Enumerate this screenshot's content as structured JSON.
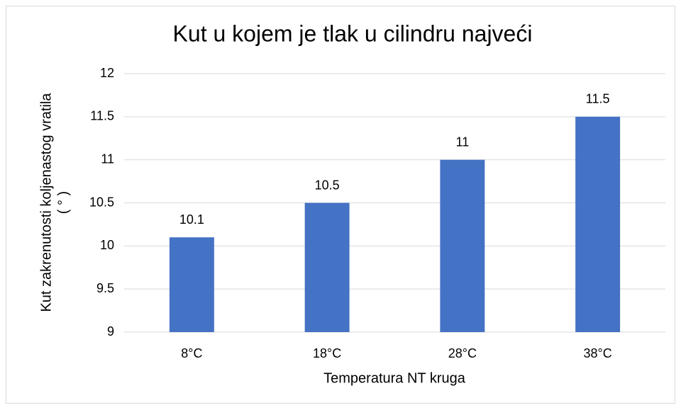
{
  "chart_data": {
    "type": "bar",
    "title": "Kut u kojem je tlak u cilindru najveći",
    "categories": [
      "8°C",
      "18°C",
      "28°C",
      "38°C"
    ],
    "values": [
      10.1,
      10.5,
      11,
      11.5
    ],
    "color": "#4472c4",
    "xlabel": "Temperatura NT kruga",
    "ylabel": [
      "Kut zakrenutosti    koljenastog vratila",
      "( ° )"
    ],
    "ylim": [
      9,
      12
    ],
    "yticks": [
      9,
      9.5,
      10,
      10.5,
      11,
      11.5,
      12
    ],
    "grid": true
  }
}
